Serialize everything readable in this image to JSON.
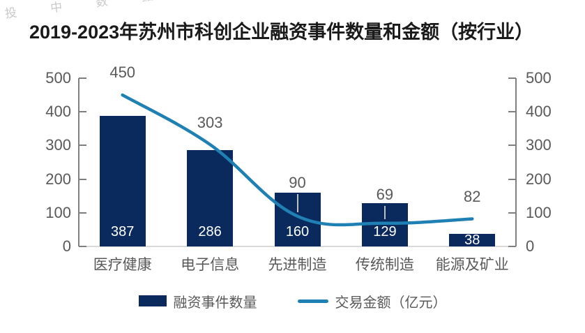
{
  "watermark": "投 中 数 据",
  "title": "2019-2023年苏州市科创企业融资事件数量和金额（按行业）",
  "chart_data": {
    "type": "bar",
    "combo": "bar+line dual-axis",
    "categories": [
      "医疗健康",
      "电子信息",
      "先进制造",
      "传统制造",
      "能源及矿业"
    ],
    "series": [
      {
        "name": "融资事件数量",
        "type": "bar",
        "axis": "left",
        "color": "#0a2a5e",
        "values": [
          387,
          286,
          160,
          129,
          38
        ]
      },
      {
        "name": "交易金额（亿元）",
        "type": "line",
        "axis": "right",
        "color": "#1f80b4",
        "values": [
          450,
          303,
          90,
          69,
          82
        ],
        "label_offsets": [
          20,
          19,
          36,
          29,
          19
        ],
        "leader_lines": [
          false,
          false,
          true,
          true,
          false
        ]
      }
    ],
    "left_axis": {
      "min": 0,
      "max": 500,
      "ticks": [
        500,
        400,
        300,
        200,
        100,
        0
      ]
    },
    "right_axis": {
      "min": 0,
      "max": 500,
      "ticks": [
        500,
        400,
        300,
        200,
        100,
        0
      ]
    },
    "grid": false,
    "legend": {
      "position": "bottom",
      "items": [
        {
          "label": "融资事件数量",
          "marker": "square",
          "color": "#0a2a5e"
        },
        {
          "label": "交易金额（亿元）",
          "marker": "line",
          "color": "#1f80b4"
        }
      ]
    }
  },
  "colors": {
    "bar": "#0a2a5e",
    "line": "#1f80b4",
    "text_gray": "#595959",
    "axis_gray": "#7f7f7f",
    "baseline_gray": "#d9d9d9",
    "bar_value_label": "#ffffff",
    "title": "#1a1a1a",
    "leader_line": "#bfbfbf"
  }
}
